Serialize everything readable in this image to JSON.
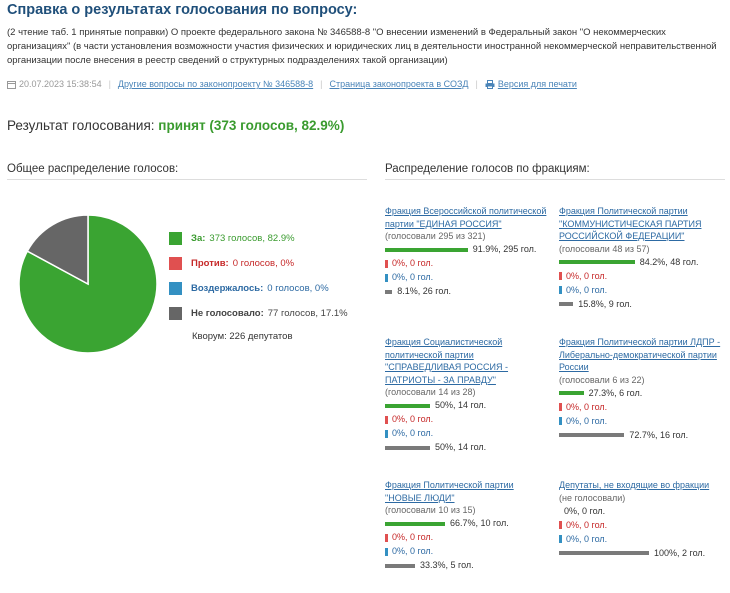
{
  "page": {
    "title": "Справка о результатах голосования по вопросу:",
    "description": "(2 чтение таб. 1 принятые поправки) О проекте федерального закона № 346588-8 \"О внесении изменений в Федеральный закон \"О некоммерческих организациях\" (в части установления возможности участия физических и юридических лиц в деятельности иностранной некоммерческой неправительственной организации после внесения в реестр сведений о структурных подразделениях такой организации)"
  },
  "meta": {
    "datetime": "20.07.2023 15:38:54",
    "other_questions_link": "Другие вопросы по законопроекту № 346588-8",
    "sozd_link": "Страница законопроекта в СОЗД",
    "print_link": "Версия для печати"
  },
  "result": {
    "label": "Результат голосования:",
    "value": "принят (373 голосов, 82.9%)"
  },
  "overall": {
    "heading": "Общее распределение голосов:",
    "legend": [
      {
        "label": "За:",
        "value": "373 голосов, 82.9%",
        "color": "#3aa432",
        "label_color": "#3a9b2f"
      },
      {
        "label": "Против:",
        "value": "0 голосов, 0%",
        "color": "#e05050",
        "label_color": "#c62828"
      },
      {
        "label": "Воздержалось:",
        "value": "0 голосов, 0%",
        "color": "#3390c2",
        "label_color": "#2d6aa3"
      },
      {
        "label": "Не голосовало:",
        "value": "77 голосов, 17.1%",
        "color": "#666666",
        "label_color": "#444444"
      }
    ],
    "quorum": "Кворум: 226 депутатов"
  },
  "chart_data": {
    "type": "pie",
    "labels": [
      "За",
      "Против",
      "Воздержалось",
      "Не голосовало"
    ],
    "values": [
      82.9,
      0,
      0,
      17.1
    ],
    "colors": [
      "#3aa432",
      "#e05050",
      "#3390c2",
      "#666666"
    ]
  },
  "factions": {
    "heading": "Распределение голосов по фракциям:",
    "items": [
      {
        "name": "Фракция Всероссийской политической партии \"ЕДИНАЯ РОССИЯ\"",
        "voted": "(голосовали 295 из 321)",
        "for": {
          "pct": 91.9,
          "text": "91.9%, 295 гол."
        },
        "against": {
          "pct": 0,
          "text": "0%, 0 гол."
        },
        "abstain": {
          "pct": 0,
          "text": "0%, 0 гол."
        },
        "absent": {
          "pct": 8.1,
          "text": "8.1%, 26 гол."
        }
      },
      {
        "name": "Фракция Политической партии \"КОММУНИСТИЧЕСКАЯ ПАРТИЯ РОССИЙСКОЙ ФЕДЕРАЦИИ\"",
        "voted": "(голосовали 48 из 57)",
        "for": {
          "pct": 84.2,
          "text": "84.2%, 48 гол."
        },
        "against": {
          "pct": 0,
          "text": "0%, 0 гол."
        },
        "abstain": {
          "pct": 0,
          "text": "0%, 0 гол."
        },
        "absent": {
          "pct": 15.8,
          "text": "15.8%, 9 гол."
        }
      },
      {
        "name": "Фракция Социалистической политической партии \"СПРАВЕДЛИВАЯ РОССИЯ - ПАТРИОТЫ - ЗА ПРАВДУ\"",
        "voted": "(голосовали 14 из 28)",
        "for": {
          "pct": 50,
          "text": "50%, 14 гол."
        },
        "against": {
          "pct": 0,
          "text": "0%, 0 гол."
        },
        "abstain": {
          "pct": 0,
          "text": "0%, 0 гол."
        },
        "absent": {
          "pct": 50,
          "text": "50%, 14 гол."
        }
      },
      {
        "name": "Фракция Политической партии ЛДПР - Либерально-демократической партии России",
        "voted": "(голосовали 6 из 22)",
        "for": {
          "pct": 27.3,
          "text": "27.3%, 6 гол."
        },
        "against": {
          "pct": 0,
          "text": "0%, 0 гол."
        },
        "abstain": {
          "pct": 0,
          "text": "0%, 0 гол."
        },
        "absent": {
          "pct": 72.7,
          "text": "72.7%, 16 гол."
        }
      },
      {
        "name": "Фракция Политической партии \"НОВЫЕ ЛЮДИ\"",
        "voted": "(голосовали 10 из 15)",
        "for": {
          "pct": 66.7,
          "text": "66.7%, 10 гол."
        },
        "against": {
          "pct": 0,
          "text": "0%, 0 гол."
        },
        "abstain": {
          "pct": 0,
          "text": "0%, 0 гол."
        },
        "absent": {
          "pct": 33.3,
          "text": "33.3%, 5 гол."
        }
      },
      {
        "name": "Депутаты, не входящие во фракции",
        "voted": "(не голосовали)",
        "for": {
          "pct": 0,
          "text": "0%, 0 гол."
        },
        "against": {
          "pct": 0,
          "text": "0%, 0 гол."
        },
        "abstain": {
          "pct": 0,
          "text": "0%, 0 гол."
        },
        "absent": {
          "pct": 100,
          "text": "100%, 2 гол."
        }
      }
    ]
  }
}
